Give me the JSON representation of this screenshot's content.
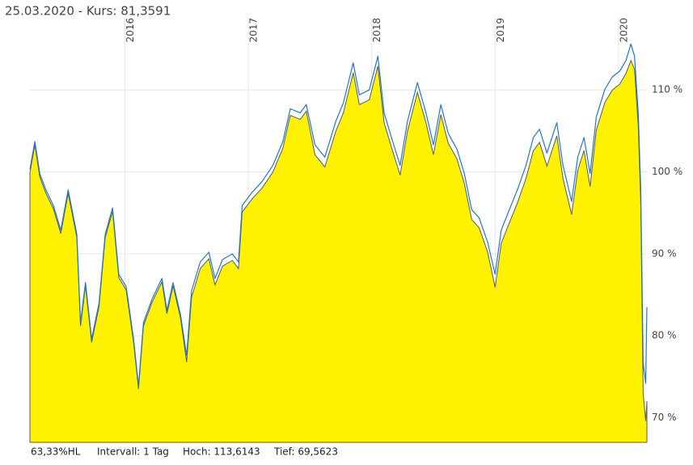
{
  "chart_data": {
    "type": "line",
    "title": "25.03.2020  -  Kurs: 81,3591",
    "footer": [
      "63,33%HL",
      "Intervall: 1 Tag",
      "Hoch: 113,6143",
      "Tief: 69,5623"
    ],
    "xlim": [
      2015.23,
      2020.23
    ],
    "xticks": [
      2016,
      2017,
      2018,
      2019,
      2020
    ],
    "ylim": [
      67,
      118.8
    ],
    "yticks": [
      {
        "value": 70,
        "label": "70 %"
      },
      {
        "value": 80,
        "label": "80 %"
      },
      {
        "value": 90,
        "label": "90 %"
      },
      {
        "value": 100,
        "label": "100 %"
      },
      {
        "value": 110,
        "label": "110 %"
      }
    ],
    "grid": true,
    "x": [
      2015.23,
      2015.27,
      2015.31,
      2015.36,
      2015.42,
      2015.48,
      2015.54,
      2015.61,
      2015.64,
      2015.68,
      2015.73,
      2015.79,
      2015.84,
      2015.9,
      2015.95,
      2016.01,
      2016.07,
      2016.11,
      2016.15,
      2016.22,
      2016.3,
      2016.34,
      2016.39,
      2016.45,
      2016.5,
      2016.54,
      2016.61,
      2016.68,
      2016.73,
      2016.79,
      2016.87,
      2016.92,
      2016.95,
      2017.03,
      2017.11,
      2017.2,
      2017.28,
      2017.34,
      2017.42,
      2017.47,
      2017.54,
      2017.62,
      2017.71,
      2017.77,
      2017.85,
      2017.9,
      2017.98,
      2018.05,
      2018.1,
      2018.16,
      2018.23,
      2018.29,
      2018.37,
      2018.44,
      2018.5,
      2018.56,
      2018.62,
      2018.69,
      2018.75,
      2018.81,
      2018.87,
      2018.94,
      2019.0,
      2019.05,
      2019.11,
      2019.18,
      2019.25,
      2019.31,
      2019.36,
      2019.42,
      2019.5,
      2019.55,
      2019.62,
      2019.67,
      2019.72,
      2019.77,
      2019.82,
      2019.89,
      2019.95,
      2020.01,
      2020.06,
      2020.1,
      2020.13,
      2020.16,
      2020.18,
      2020.2,
      2020.22,
      2020.23
    ],
    "series": [
      {
        "color": "#fff200",
        "line_color": "#5a5a5a",
        "fill": true,
        "values": [
          99.9,
          103.3,
          99.4,
          97.4,
          95.5,
          92.5,
          97.4,
          92.0,
          81.2,
          86.1,
          79.2,
          83.6,
          92.0,
          95.2,
          87.1,
          85.6,
          79.2,
          73.5,
          81.2,
          84.1,
          86.6,
          82.7,
          86.1,
          82.2,
          76.8,
          84.7,
          88.2,
          89.4,
          86.2,
          88.5,
          89.2,
          88.2,
          95.1,
          96.7,
          98.0,
          100.0,
          102.9,
          106.9,
          106.4,
          107.4,
          102.1,
          100.6,
          105.0,
          107.2,
          112.1,
          108.2,
          108.8,
          112.9,
          106.0,
          103.0,
          99.6,
          105.0,
          109.7,
          106.0,
          102.1,
          107.0,
          103.5,
          101.6,
          98.6,
          94.2,
          93.2,
          90.2,
          85.9,
          91.3,
          93.6,
          96.2,
          99.2,
          102.6,
          103.6,
          100.7,
          104.4,
          99.2,
          94.8,
          100.2,
          102.6,
          98.2,
          105.1,
          108.5,
          110.0,
          110.7,
          112.0,
          113.6,
          112.5,
          105.6,
          96.2,
          73.0,
          69.6,
          72.0
        ]
      },
      {
        "color": "#1f78c8",
        "fill": false,
        "values": [
          100.3,
          103.7,
          99.8,
          97.8,
          95.9,
          92.9,
          97.8,
          92.4,
          81.6,
          86.5,
          79.6,
          84.0,
          92.4,
          95.6,
          87.5,
          86.0,
          79.6,
          73.9,
          81.6,
          84.5,
          87.0,
          83.1,
          86.5,
          82.6,
          77.6,
          85.5,
          89.0,
          90.2,
          87.0,
          89.3,
          90.0,
          89.0,
          95.9,
          97.5,
          98.8,
          100.8,
          103.7,
          107.7,
          107.2,
          108.2,
          103.3,
          101.8,
          106.2,
          108.4,
          113.3,
          109.4,
          110.0,
          114.1,
          107.2,
          104.2,
          100.8,
          106.2,
          110.9,
          107.2,
          103.3,
          108.2,
          104.7,
          102.8,
          99.8,
          95.4,
          94.4,
          91.4,
          87.5,
          92.9,
          95.2,
          97.8,
          100.8,
          104.2,
          105.2,
          102.3,
          106.0,
          100.8,
          96.4,
          101.8,
          104.2,
          99.8,
          106.7,
          110.1,
          111.6,
          112.3,
          113.6,
          115.6,
          114.1,
          107.2,
          97.8,
          76.7,
          74.2,
          83.5
        ]
      }
    ]
  }
}
